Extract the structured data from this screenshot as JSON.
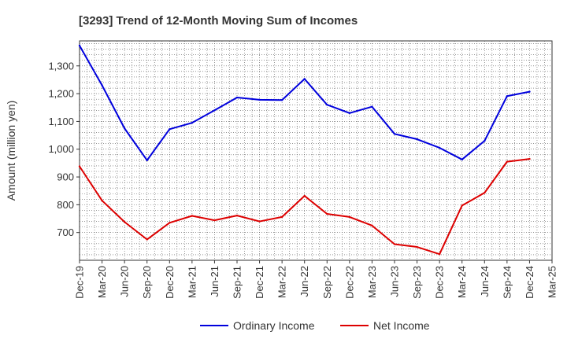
{
  "chart_data": {
    "type": "line",
    "title": "[3293]  Trend of 12-Month Moving Sum of Incomes",
    "xlabel": "",
    "ylabel": "Amount (million yen)",
    "ylim": [
      600,
      1390
    ],
    "yticks": [
      700,
      800,
      900,
      1000,
      1100,
      1200,
      1300
    ],
    "ytick_labels": [
      "700",
      "800",
      "900",
      "1,000",
      "1,100",
      "1,200",
      "1,300"
    ],
    "grid": true,
    "legend_position": "bottom",
    "categories": [
      "Dec-19",
      "Mar-20",
      "Jun-20",
      "Sep-20",
      "Dec-20",
      "Mar-21",
      "Jun-21",
      "Sep-21",
      "Dec-21",
      "Mar-22",
      "Jun-22",
      "Sep-22",
      "Dec-22",
      "Mar-23",
      "Jun-23",
      "Sep-23",
      "Dec-23",
      "Mar-24",
      "Jun-24",
      "Sep-24",
      "Dec-24",
      "Mar-25"
    ],
    "series": [
      {
        "name": "Ordinary Income",
        "color": "#0000dd",
        "values": [
          1373,
          1230,
          1075,
          960,
          1072,
          1095,
          1140,
          1186,
          1178,
          1177,
          1253,
          1160,
          1130,
          1153,
          1055,
          1036,
          1005,
          963,
          1030,
          1191,
          1207,
          null
        ]
      },
      {
        "name": "Net Income",
        "color": "#dd0000",
        "values": [
          938,
          815,
          738,
          675,
          735,
          760,
          744,
          761,
          740,
          756,
          832,
          767,
          756,
          725,
          658,
          648,
          622,
          797,
          843,
          955,
          965,
          null
        ]
      }
    ]
  }
}
